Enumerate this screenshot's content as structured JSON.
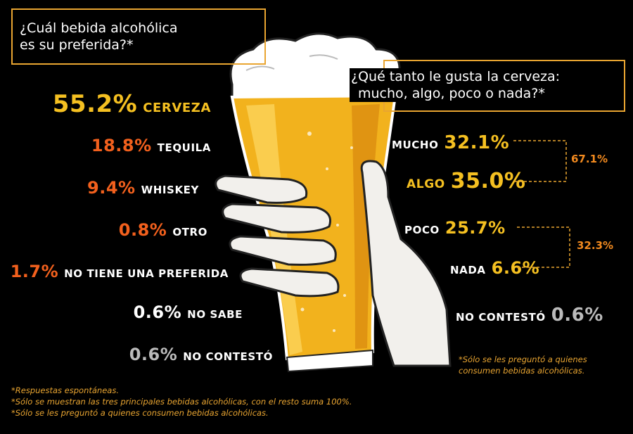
{
  "questions": {
    "q1": [
      "¿Cuál bebida alcohólica",
      "es su preferida?*"
    ],
    "q2": [
      "¿Qué tanto le gusta la cerveza:",
      "mucho, algo, poco o nada?*"
    ]
  },
  "colors": {
    "gold": "#f5c021",
    "orange": "#f2601d",
    "white": "#ffffff",
    "gray": "#bbbbbb",
    "frame": "#e9a531"
  },
  "chart_data": [
    {
      "type": "bar",
      "title": "¿Cuál bebida alcohólica es su preferida?*",
      "categories": [
        "CERVEZA",
        "TEQUILA",
        "WHISKEY",
        "OTRO",
        "NO TIENE UNA PREFERIDA",
        "NO SABE",
        "NO CONTESTÓ"
      ],
      "values": [
        55.2,
        18.8,
        9.4,
        0.8,
        1.7,
        0.6,
        0.6
      ],
      "labels": [
        "55.2%",
        "18.8%",
        "9.4%",
        "0.8%",
        "1.7%",
        "0.6%",
        "0.6%"
      ]
    },
    {
      "type": "bar",
      "title": "¿Qué tanto le gusta la cerveza: mucho, algo, poco o nada?*",
      "categories": [
        "MUCHO",
        "ALGO",
        "POCO",
        "NADA",
        "NO CONTESTÓ"
      ],
      "values": [
        32.1,
        35.0,
        25.7,
        6.6,
        0.6
      ],
      "labels": [
        "32.1%",
        "35.0%",
        "25.7%",
        "6.6%",
        "0.6%"
      ],
      "groups": [
        {
          "members": [
            "MUCHO",
            "ALGO"
          ],
          "label": "67.1%"
        },
        {
          "members": [
            "POCO",
            "NADA"
          ],
          "label": "32.3%"
        }
      ]
    }
  ],
  "notes": {
    "right": [
      "*Sólo se les preguntó a quienes",
      "consumen bebidas alcohólicas."
    ],
    "bottom": [
      "*Respuestas espontáneas.",
      "*Sólo se muestran las tres principales bebidas alcohólicas, con el resto suma 100%.",
      "*Sólo se les preguntó a quienes consumen bebidas alcohólicas."
    ]
  }
}
